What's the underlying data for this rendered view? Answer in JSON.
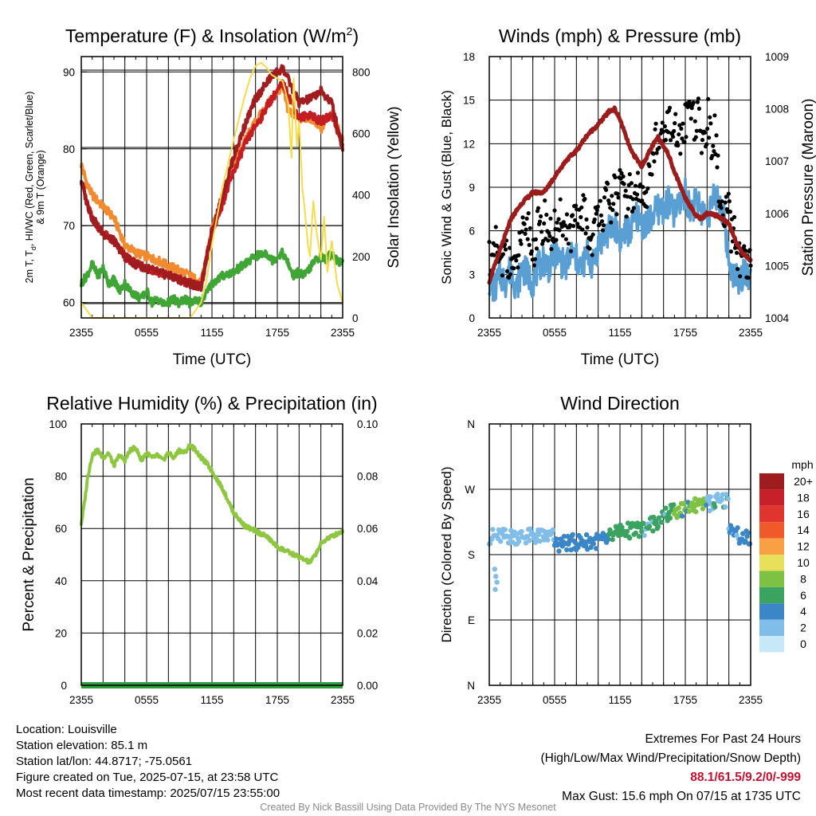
{
  "chart_data": [
    {
      "type": "line",
      "title": "Temperature (F) & Insolation (W/m²)",
      "ylabel": "2m T, Td, HI/WC (Red, Green, Scarlet/Blue) & 9m T (Orange)",
      "ylabel_line1": "2m T, T",
      "ylabel_sub": "d",
      "ylabel_line1_rest": ", HI/WC (Red, Green, Scarlet/Blue)",
      "ylabel_line2": "& 9m T (Orange)",
      "y2label": "Solar Insolation (Yellow)",
      "xlabel": "Time (UTC)",
      "x_tick_labels": [
        "2355",
        "0555",
        "1155",
        "1755",
        "2355"
      ],
      "ylim": [
        58,
        92
      ],
      "yticks": [
        60,
        70,
        80,
        90
      ],
      "y2lim": [
        0,
        850
      ],
      "y2ticks": [
        0,
        200,
        400,
        600,
        800
      ],
      "x_hours": [
        0,
        2,
        4,
        6,
        8,
        10,
        12,
        14,
        16,
        18,
        20,
        22,
        24
      ],
      "series": [
        {
          "color": "#f28b30",
          "axis": "left",
          "x": [
            0,
            0.5,
            1,
            2,
            3,
            4,
            5,
            6,
            7,
            8,
            9,
            10,
            11,
            12,
            13,
            14,
            15,
            16,
            16.5,
            17,
            17.5,
            18,
            18.5,
            19,
            20,
            21,
            22,
            23,
            24
          ],
          "y": [
            78,
            75.5,
            74,
            72.5,
            71,
            67.5,
            66.5,
            66,
            65.5,
            64.8,
            64.2,
            63.5,
            62.5,
            69.5,
            74,
            78,
            81,
            83.5,
            84.5,
            85.5,
            86.5,
            87.5,
            88,
            85,
            84,
            84,
            82.5,
            85,
            81
          ]
        },
        {
          "color": "#c41e24",
          "axis": "left",
          "x": [
            0,
            0.5,
            1,
            2,
            3,
            4,
            5,
            6,
            7,
            8,
            9,
            10,
            11,
            12,
            13,
            14,
            15,
            16,
            16.5,
            17,
            17.5,
            18,
            18.5,
            19,
            20,
            21,
            22,
            23,
            24
          ],
          "y": [
            76,
            73,
            71,
            69,
            68,
            66,
            65,
            64.5,
            64,
            63.5,
            63,
            62.5,
            62,
            69,
            73,
            77,
            80.5,
            83,
            84,
            85.5,
            86.5,
            87.5,
            88.5,
            87,
            84,
            84.5,
            83.5,
            84.5,
            80.5
          ]
        },
        {
          "color": "#a01c1f",
          "axis": "left",
          "x": [
            0,
            0.5,
            1,
            2,
            3,
            4,
            5,
            6,
            7,
            8,
            9,
            10,
            11,
            12,
            13,
            14,
            15,
            16,
            16.5,
            17,
            17.5,
            18,
            18.5,
            19,
            20,
            21,
            22,
            23,
            24
          ],
          "y": [
            76,
            73,
            71,
            69,
            68,
            66,
            65,
            64.5,
            64,
            63.5,
            63,
            62.5,
            62,
            69.5,
            74,
            79,
            83,
            86.5,
            87.5,
            88.5,
            89.5,
            90,
            90.5,
            89,
            86,
            86.5,
            87.5,
            86,
            80
          ]
        },
        {
          "color": "#3fa535",
          "axis": "left",
          "x": [
            0,
            0.5,
            1,
            1.5,
            2,
            2.5,
            3,
            3.5,
            4,
            4.5,
            5,
            5.5,
            6,
            6.5,
            7,
            7.5,
            8,
            8.5,
            9,
            9.5,
            10,
            10.5,
            11,
            12,
            13,
            14,
            15,
            16,
            17,
            17.5,
            18,
            18.5,
            19,
            19.5,
            20,
            20.5,
            21,
            21.5,
            22,
            22.5,
            23,
            23.5,
            24
          ],
          "y": [
            62.5,
            63.5,
            65,
            63.5,
            64.5,
            62.5,
            63,
            61.5,
            62.5,
            61.5,
            61,
            60.5,
            61.5,
            60,
            60.5,
            59.8,
            60,
            60.5,
            59.8,
            60.5,
            59.8,
            60.5,
            60,
            62.5,
            63.5,
            64,
            65,
            66,
            66.5,
            65.5,
            66,
            66.5,
            65,
            63.5,
            64,
            63.5,
            64.5,
            65.5,
            66,
            65.5,
            66.5,
            65.5,
            65
          ]
        },
        {
          "color": "#f7dc4a",
          "axis": "right",
          "x": [
            0,
            1,
            2,
            3,
            4,
            5,
            6,
            7,
            8,
            9,
            10,
            11,
            11.5,
            12,
            13,
            14,
            15,
            15.5,
            16,
            16.5,
            17,
            17.5,
            18,
            18.5,
            19,
            19.3,
            19.5,
            19.8,
            20,
            20.3,
            20.5,
            20.8,
            21,
            21.3,
            21.6,
            22,
            22.3,
            22.6,
            23,
            23.5,
            24
          ],
          "y": [
            50,
            0,
            0,
            0,
            0,
            0,
            0,
            0,
            0,
            0,
            0,
            50,
            120,
            240,
            430,
            580,
            720,
            780,
            820,
            830,
            815,
            790,
            780,
            770,
            700,
            520,
            780,
            560,
            640,
            420,
            360,
            240,
            200,
            380,
            280,
            190,
            330,
            150,
            250,
            110,
            50
          ]
        }
      ]
    },
    {
      "type": "scatter",
      "title": "Winds (mph) & Pressure (mb)",
      "ylabel": "Sonic Wind & Gust (Blue, Black)",
      "y2label": "Station Pressure (Maroon)",
      "xlabel": "Time (UTC)",
      "x_tick_labels": [
        "2355",
        "0555",
        "1155",
        "1755",
        "2355"
      ],
      "ylim": [
        0,
        18
      ],
      "yticks": [
        0,
        3,
        6,
        9,
        12,
        15,
        18
      ],
      "y2lim": [
        1004,
        1009
      ],
      "y2ticks": [
        1004,
        1005,
        1006,
        1007,
        1008,
        1009
      ],
      "series": [
        {
          "color": "#5a9fd4",
          "kind": "line",
          "x": [
            0,
            0.5,
            1,
            1.5,
            2,
            2.5,
            3,
            3.5,
            4,
            4.5,
            5,
            5.5,
            6,
            6.5,
            7,
            7.5,
            8,
            8.5,
            9,
            9.5,
            10,
            10.5,
            11,
            11.5,
            12,
            12.5,
            13,
            13.5,
            14,
            14.5,
            15,
            15.5,
            16,
            16.5,
            17,
            17.5,
            18,
            18.5,
            19,
            19.5,
            20,
            20.5,
            21,
            21.5,
            22,
            22.5,
            23,
            23.5,
            24
          ],
          "y": [
            2.5,
            2,
            3,
            2.5,
            3.5,
            2,
            3.5,
            3,
            2.5,
            3.5,
            4,
            3.5,
            4.5,
            4,
            3.5,
            4.5,
            4,
            3.5,
            4.5,
            3.5,
            5,
            5.5,
            6,
            6.5,
            5.5,
            6,
            6,
            7,
            6.5,
            6.5,
            7,
            7.5,
            7.5,
            8,
            7,
            8,
            8.5,
            7.5,
            8,
            7.5,
            7,
            8,
            8.5,
            7,
            4,
            3,
            2.5,
            3.5,
            2.5
          ]
        },
        {
          "color": "#000000",
          "kind": "points",
          "x": [
            0,
            0.3,
            0.6,
            0.9,
            1.2,
            1.5,
            1.8,
            2.1,
            2.4,
            2.7,
            3,
            3.3,
            3.6,
            3.9,
            4.2,
            4.5,
            4.8,
            5.1,
            5.4,
            5.7,
            6,
            6.3,
            6.6,
            6.9,
            7.2,
            7.5,
            7.8,
            8.1,
            8.4,
            8.7,
            9,
            9.3,
            9.6,
            9.9,
            10.2,
            10.5,
            10.8,
            11.1,
            11.4,
            11.7,
            12,
            12.3,
            12.6,
            12.9,
            13.2,
            13.5,
            13.8,
            14.1,
            14.4,
            14.7,
            15,
            15.3,
            15.6,
            15.9,
            16.2,
            16.5,
            16.8,
            17.1,
            17.4,
            17.7,
            18,
            18.3,
            18.6,
            18.9,
            19.2,
            19.5,
            19.8,
            20.1,
            20.4,
            20.7,
            21,
            21.3,
            21.6,
            21.9,
            22.2,
            22.5,
            22.8,
            23.1,
            23.4,
            23.7,
            24
          ],
          "y": [
            4.5,
            3.5,
            5,
            4,
            3,
            5.5,
            3.5,
            4,
            3,
            4.5,
            6,
            5,
            6.5,
            4.5,
            5,
            6.5,
            5.5,
            7,
            6,
            5.5,
            6.5,
            5,
            7.5,
            6,
            6.5,
            5.5,
            7,
            6,
            7,
            7.5,
            6,
            5,
            6,
            7,
            8,
            7,
            8.5,
            7,
            9,
            8,
            9.5,
            8.5,
            8,
            9,
            7.5,
            9,
            8.5,
            9.5,
            8,
            10,
            11,
            12.5,
            11,
            13.5,
            12,
            14,
            11.5,
            13,
            12,
            12.5,
            13.5,
            14.5,
            15,
            13,
            14,
            12,
            12.5,
            14,
            11.5,
            13,
            10,
            7,
            6.5,
            8,
            5.5,
            6,
            4.5,
            3.5,
            4,
            3,
            4
          ]
        },
        {
          "color": "#9c1c1c",
          "kind": "line",
          "axis": "right",
          "x": [
            0,
            1,
            2,
            3,
            4,
            5,
            6,
            7,
            8,
            9,
            10,
            11,
            11.5,
            12,
            12.5,
            13,
            14,
            15,
            15.5,
            16,
            16.5,
            17,
            18,
            19,
            19.5,
            20,
            21,
            22,
            23,
            24
          ],
          "y": [
            1004.7,
            1005.3,
            1005.9,
            1006.2,
            1006.4,
            1006.4,
            1006.7,
            1007,
            1007.2,
            1007.5,
            1007.7,
            1007.95,
            1008,
            1007.8,
            1007.5,
            1007.2,
            1006.9,
            1007.3,
            1007.45,
            1007.3,
            1007.1,
            1006.8,
            1006.3,
            1005.95,
            1005.9,
            1006,
            1005.95,
            1005.8,
            1005.3,
            1005.1
          ]
        }
      ]
    },
    {
      "type": "line",
      "title": "Relative Humidity (%) & Precipitation (in)",
      "ylabel": "Percent & Precipitation",
      "ylim": [
        0,
        100
      ],
      "yticks": [
        0,
        20,
        40,
        60,
        80,
        100
      ],
      "y2lim": [
        0,
        0.1
      ],
      "y2tick_labels": [
        "0.00",
        "0.02",
        "0.04",
        "0.06",
        "0.08",
        "0.10"
      ],
      "x_tick_labels": [
        "2355",
        "0555",
        "1155",
        "1755",
        "2355"
      ],
      "series": [
        {
          "color": "#8dc63f",
          "x": [
            0,
            0.3,
            0.6,
            1,
            1.5,
            2,
            2.5,
            3,
            3.5,
            4,
            4.5,
            5,
            5.5,
            6,
            6.5,
            7,
            7.5,
            8,
            8.5,
            9,
            9.5,
            10,
            10.5,
            11,
            11.5,
            12,
            13,
            14,
            15,
            16,
            17,
            18,
            19,
            20,
            20.5,
            21,
            21.5,
            22,
            22.5,
            23,
            23.5,
            24
          ],
          "y": [
            62,
            70,
            80,
            88,
            90,
            87,
            89,
            84,
            88,
            86,
            90,
            91,
            86,
            89,
            87,
            88,
            86,
            89,
            87,
            90,
            89,
            92,
            90,
            87,
            85,
            82,
            75,
            66,
            61,
            59,
            57,
            53,
            51,
            49,
            48,
            47,
            50,
            54,
            56,
            57,
            58,
            59
          ]
        },
        {
          "color": "#2f9e3f",
          "x": [
            0,
            24
          ],
          "y": [
            0,
            0
          ]
        }
      ]
    },
    {
      "type": "scatter",
      "title": "Wind Direction",
      "ylabel": "Direction (Colored By Speed)",
      "ytick_labels": [
        "N",
        "E",
        "S",
        "W",
        "N"
      ],
      "y_degrees": [
        0,
        90,
        180,
        270,
        360
      ],
      "x_tick_labels": [
        "2355",
        "0555",
        "1155",
        "1755",
        "2355"
      ],
      "legend": {
        "title": "mph",
        "labels": [
          "20+",
          "18",
          "16",
          "14",
          "12",
          "10",
          "8",
          "6",
          "4",
          "2",
          "0"
        ],
        "colors": [
          "#9e1b1e",
          "#c8202a",
          "#e0352f",
          "#f05a2a",
          "#f8a043",
          "#e8e05a",
          "#7dc242",
          "#3aa35f",
          "#3a86c6",
          "#80bde8",
          "#c6e8f8"
        ]
      },
      "segments": [
        {
          "from": 0,
          "to": 6,
          "deg_start": 205,
          "deg_end": 205,
          "color": "#80bde8"
        },
        {
          "from": 6,
          "to": 11,
          "deg_start": 195,
          "deg_end": 200,
          "color": "#3a86c6"
        },
        {
          "from": 11,
          "to": 14,
          "deg_start": 210,
          "deg_end": 215,
          "color": "#3aa35f"
        },
        {
          "from": 14,
          "to": 17,
          "deg_start": 215,
          "deg_end": 240,
          "color": "#3aa35f"
        },
        {
          "from": 17,
          "to": 20,
          "deg_start": 240,
          "deg_end": 250,
          "color": "#7dc242"
        },
        {
          "from": 20,
          "to": 22,
          "deg_start": 250,
          "deg_end": 255,
          "color": "#80bde8"
        },
        {
          "from": 22,
          "to": 24,
          "deg_start": 210,
          "deg_end": 200,
          "color": "#3a86c6"
        }
      ]
    }
  ],
  "footer": {
    "location": "Location: Louisville",
    "elevation": "Station elevation: 85.1 m",
    "latlon": "Station lat/lon: 44.8717; -75.0561",
    "created": "Figure created on Tue, 2025-07-15, at 23:58 UTC",
    "recent": "Most recent data timestamp: 2025/07/15 23:55:00",
    "extremes_title": "Extremes For Past 24 Hours",
    "extremes_desc": "(High/Low/Max Wind/Precipitation/Snow Depth)",
    "extremes_values": "88.1/61.5/9.2/0/-999",
    "max_gust": "Max Gust: 15.6 mph On 07/15 at 1735 UTC",
    "credit": "Created By Nick Bassill Using Data Provided By The NYS Mesonet"
  }
}
